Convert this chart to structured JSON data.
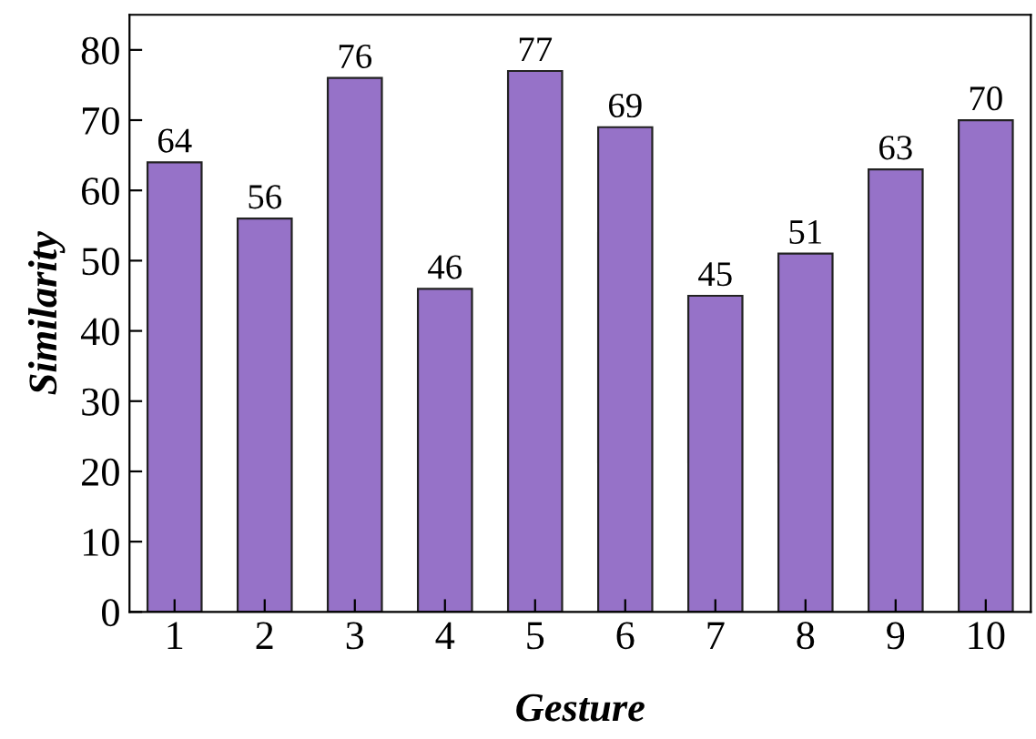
{
  "chart_data": {
    "type": "bar",
    "xlabel": "Gesture",
    "ylabel": "Similarity",
    "categories": [
      "1",
      "2",
      "3",
      "4",
      "5",
      "6",
      "7",
      "8",
      "9",
      "10"
    ],
    "values": [
      64,
      56,
      76,
      46,
      77,
      69,
      45,
      51,
      63,
      70
    ],
    "color": "#9672c8",
    "data_labels": true,
    "ylim": [
      0,
      85
    ],
    "yticks": [
      0,
      10,
      20,
      30,
      40,
      50,
      60,
      70,
      80
    ],
    "grid": false
  }
}
